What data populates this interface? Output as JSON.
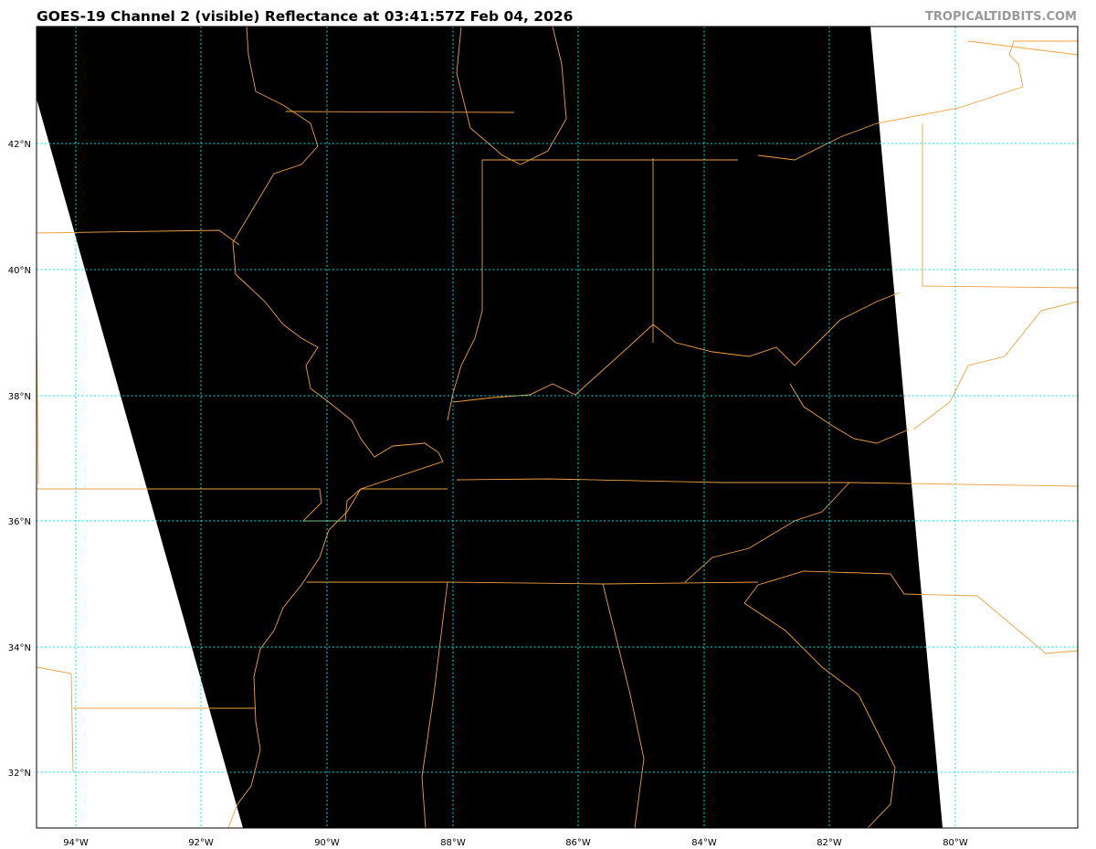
{
  "header": {
    "title": "GOES-19 Channel 2 (visible) Reflectance at 03:41:57Z Feb 04, 2026",
    "brand": "TROPICALTIDBITS.COM"
  },
  "map": {
    "satellite": "GOES-19",
    "channel": "Channel 2 (visible)",
    "product": "Reflectance",
    "extent": {
      "lon": [
        -94.6,
        -78.0
      ],
      "lat": [
        31.1,
        43.8
      ]
    },
    "lat_labels": [
      "42°N",
      "40°N",
      "38°N",
      "36°N",
      "34°N",
      "32°N"
    ],
    "lat_values": [
      42,
      40,
      38,
      36,
      34,
      32
    ],
    "lon_labels": [
      "94°W",
      "92°W",
      "90°W",
      "88°W",
      "86°W",
      "84°W",
      "82°W",
      "80°W"
    ],
    "lon_values": [
      -94,
      -92,
      -90,
      -88,
      -86,
      -84,
      -82,
      -80
    ],
    "colors": {
      "gridlines": "#00e5e5",
      "borders": "#f0a040",
      "imagery": "#000000",
      "no_data": "#ffffff",
      "brand": "#999999"
    }
  }
}
